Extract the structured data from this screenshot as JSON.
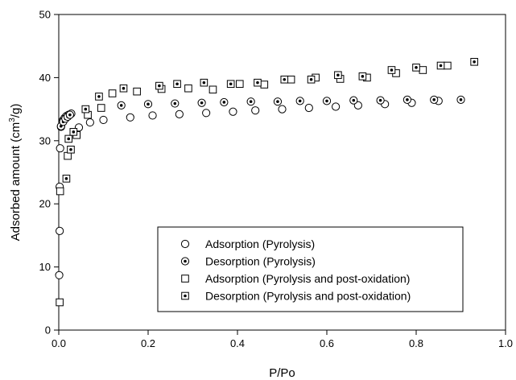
{
  "chart_data": {
    "type": "scatter",
    "xlabel": "P/Po",
    "ylabel_main": "Adsorbed amount (cm",
    "ylabel_sup": "3",
    "ylabel_tail": "/g)",
    "xlim": [
      0.0,
      1.0
    ],
    "ylim": [
      0,
      50
    ],
    "xticks": [
      0.0,
      0.2,
      0.4,
      0.6,
      0.8,
      1.0
    ],
    "xtick_labels": [
      "0.0",
      "0.2",
      "0.4",
      "0.6",
      "0.8",
      "1.0"
    ],
    "yticks": [
      0,
      10,
      20,
      30,
      40,
      50
    ],
    "ytick_labels": [
      "0",
      "10",
      "20",
      "30",
      "40",
      "50"
    ],
    "grid": false,
    "legend_position": "bottom-right",
    "series": [
      {
        "name": "Adsorption (Pyrolysis)",
        "marker": "circle-open",
        "points": [
          [
            0.001,
            8.7
          ],
          [
            0.002,
            15.7
          ],
          [
            0.002,
            22.7
          ],
          [
            0.003,
            28.8
          ],
          [
            0.005,
            32.2
          ],
          [
            0.009,
            33.2
          ],
          [
            0.013,
            33.6
          ],
          [
            0.017,
            33.9
          ],
          [
            0.022,
            34.1
          ],
          [
            0.028,
            34.3
          ],
          [
            0.045,
            32.1
          ],
          [
            0.07,
            32.9
          ],
          [
            0.1,
            33.3
          ],
          [
            0.16,
            33.7
          ],
          [
            0.21,
            34.0
          ],
          [
            0.27,
            34.2
          ],
          [
            0.33,
            34.4
          ],
          [
            0.39,
            34.6
          ],
          [
            0.44,
            34.8
          ],
          [
            0.5,
            35.0
          ],
          [
            0.56,
            35.2
          ],
          [
            0.62,
            35.4
          ],
          [
            0.67,
            35.6
          ],
          [
            0.73,
            35.8
          ],
          [
            0.79,
            36.0
          ],
          [
            0.85,
            36.3
          ]
        ]
      },
      {
        "name": "Desorption (Pyrolysis)",
        "marker": "circle-dot",
        "points": [
          [
            0.005,
            32.3
          ],
          [
            0.01,
            33.0
          ],
          [
            0.015,
            33.5
          ],
          [
            0.02,
            33.8
          ],
          [
            0.025,
            34.1
          ],
          [
            0.14,
            35.6
          ],
          [
            0.2,
            35.8
          ],
          [
            0.26,
            35.9
          ],
          [
            0.32,
            36.0
          ],
          [
            0.37,
            36.1
          ],
          [
            0.43,
            36.2
          ],
          [
            0.49,
            36.2
          ],
          [
            0.54,
            36.3
          ],
          [
            0.6,
            36.3
          ],
          [
            0.66,
            36.4
          ],
          [
            0.72,
            36.4
          ],
          [
            0.78,
            36.5
          ],
          [
            0.84,
            36.5
          ],
          [
            0.9,
            36.5
          ]
        ]
      },
      {
        "name": "Adsorption (Pyrolysis and post-oxidation)",
        "marker": "square-open",
        "points": [
          [
            0.002,
            4.4
          ],
          [
            0.003,
            22.0
          ],
          [
            0.02,
            27.6
          ],
          [
            0.04,
            30.9
          ],
          [
            0.065,
            34.1
          ],
          [
            0.095,
            35.2
          ],
          [
            0.12,
            37.5
          ],
          [
            0.175,
            37.8
          ],
          [
            0.23,
            38.2
          ],
          [
            0.29,
            38.3
          ],
          [
            0.345,
            38.1
          ],
          [
            0.405,
            39.0
          ],
          [
            0.46,
            38.9
          ],
          [
            0.52,
            39.7
          ],
          [
            0.575,
            40.0
          ],
          [
            0.63,
            39.8
          ],
          [
            0.69,
            40.0
          ],
          [
            0.755,
            40.7
          ],
          [
            0.815,
            41.2
          ],
          [
            0.87,
            41.9
          ]
        ]
      },
      {
        "name": "Desorption (Pyrolysis and post-oxidation)",
        "marker": "square-dot",
        "points": [
          [
            0.017,
            24.0
          ],
          [
            0.022,
            30.3
          ],
          [
            0.027,
            28.6
          ],
          [
            0.033,
            31.4
          ],
          [
            0.06,
            35.0
          ],
          [
            0.09,
            37.0
          ],
          [
            0.145,
            38.3
          ],
          [
            0.225,
            38.7
          ],
          [
            0.265,
            39.0
          ],
          [
            0.325,
            39.2
          ],
          [
            0.385,
            39.0
          ],
          [
            0.445,
            39.2
          ],
          [
            0.505,
            39.7
          ],
          [
            0.565,
            39.7
          ],
          [
            0.625,
            40.4
          ],
          [
            0.68,
            40.2
          ],
          [
            0.745,
            41.2
          ],
          [
            0.8,
            41.6
          ],
          [
            0.855,
            41.9
          ],
          [
            0.93,
            42.5
          ]
        ]
      }
    ]
  }
}
